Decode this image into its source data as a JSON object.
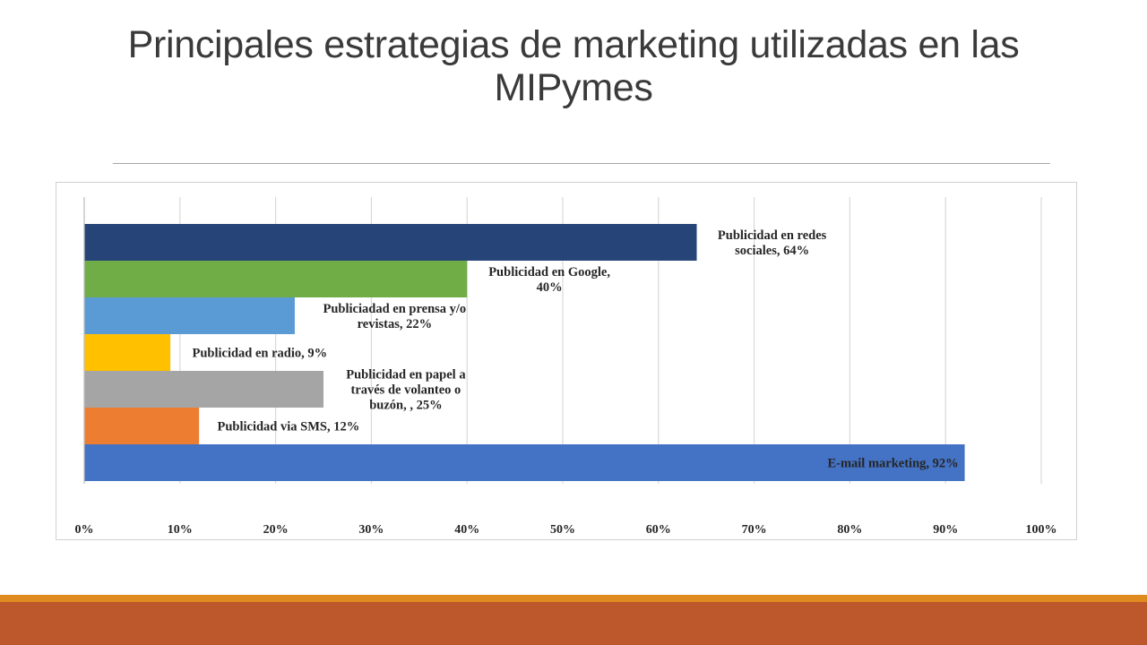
{
  "slide": {
    "title": "Principales estrategias de marketing utilizadas en las MIPymes"
  },
  "chart_data": {
    "type": "bar",
    "orientation": "horizontal",
    "categories": [
      "Publicidad en redes sociales",
      "Publicidad en Google",
      "Publiciadad en prensa y/o revistas",
      "Publicidad en radio",
      "Publicidad en papel a través de volanteo o buzón,",
      "Publicidad via SMS",
      "E-mail marketing"
    ],
    "values": [
      64,
      40,
      22,
      9,
      25,
      12,
      92
    ],
    "data_labels": [
      [
        "Publicidad en redes",
        "sociales, 64%"
      ],
      [
        "Publicidad en Google,",
        "40%"
      ],
      [
        "Publiciadad en prensa  y/o",
        "revistas, 22%"
      ],
      [
        "Publicidad en radio, 9%"
      ],
      [
        "Publicidad en papel a",
        "través de volanteo o",
        "buzón, , 25%"
      ],
      [
        "Publicidad via SMS, 12%"
      ],
      [
        "E-mail marketing, 92%"
      ]
    ],
    "colors": [
      "#264478",
      "#70ad47",
      "#5b9bd5",
      "#ffc000",
      "#a5a5a5",
      "#ed7d31",
      "#4472c4"
    ],
    "xlim": [
      0,
      100
    ],
    "x_ticks": [
      "0%",
      "10%",
      "20%",
      "30%",
      "40%",
      "50%",
      "60%",
      "70%",
      "80%",
      "90%",
      "100%"
    ],
    "grid": true,
    "legend": "none",
    "title": "",
    "xlabel": "",
    "ylabel": ""
  }
}
